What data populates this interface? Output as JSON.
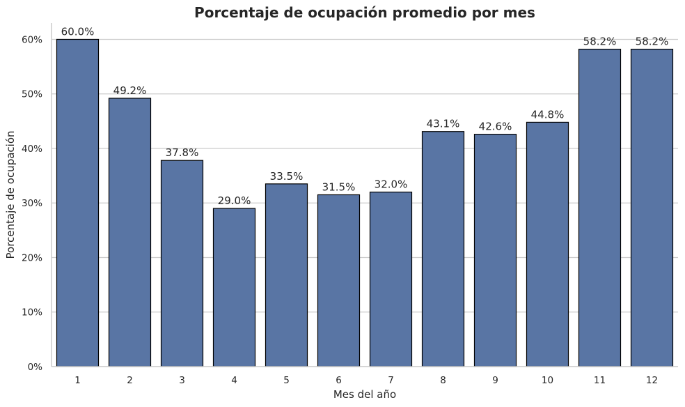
{
  "chart_data": {
    "type": "bar",
    "title": "Porcentaje de ocupación promedio por mes",
    "xlabel": "Mes del año",
    "ylabel": "Porcentaje de ocupación",
    "categories": [
      "1",
      "2",
      "3",
      "4",
      "5",
      "6",
      "7",
      "8",
      "9",
      "10",
      "11",
      "12"
    ],
    "values": [
      60.0,
      49.2,
      37.8,
      29.0,
      33.5,
      31.5,
      32.0,
      43.1,
      42.6,
      44.8,
      58.2,
      58.2
    ],
    "data_labels": [
      "60.0%",
      "49.2%",
      "37.8%",
      "29.0%",
      "33.5%",
      "31.5%",
      "32.0%",
      "43.1%",
      "42.6%",
      "44.8%",
      "58.2%",
      "58.2%"
    ],
    "yticks": [
      0,
      10,
      20,
      30,
      40,
      50,
      60
    ],
    "ytick_labels": [
      "0%",
      "10%",
      "20%",
      "30%",
      "40%",
      "50%",
      "60%"
    ],
    "ylim": [
      0,
      63
    ],
    "grid": "horizontal",
    "bar_color": "#5975a4",
    "bar_edge_color": "#000000"
  }
}
